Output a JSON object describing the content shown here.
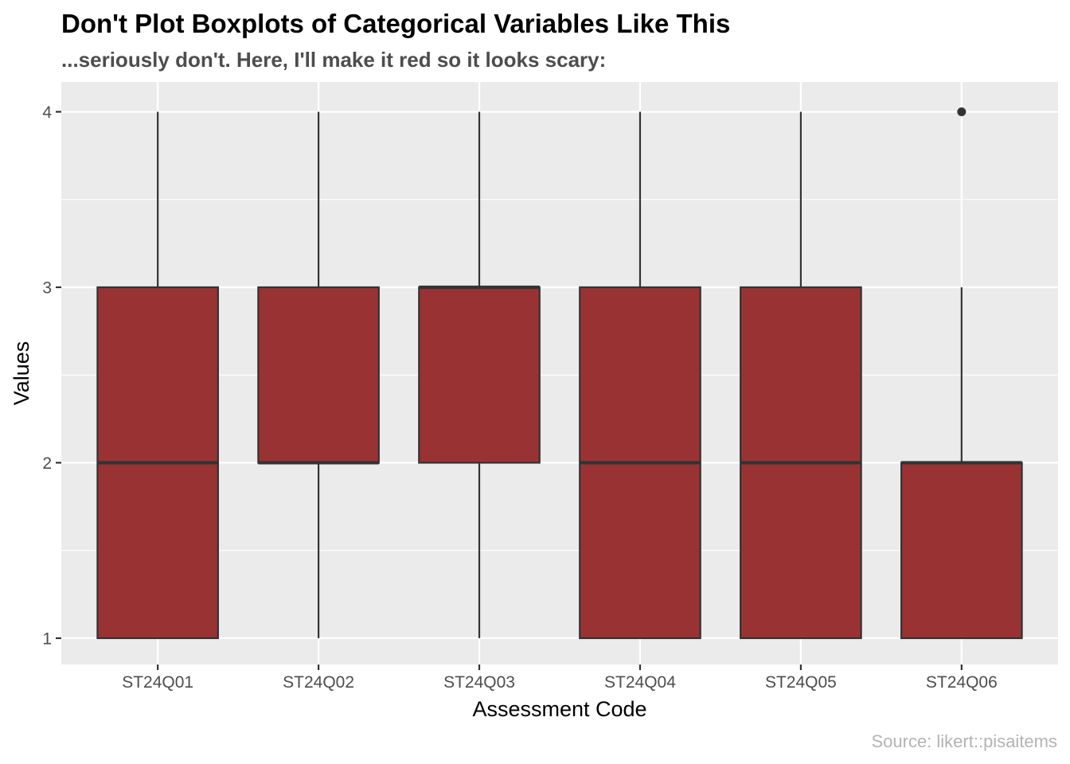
{
  "chart_data": {
    "type": "boxplot",
    "title": "Don't Plot Boxplots of Categorical Variables Like This",
    "subtitle": "...seriously don't. Here, I'll make it red so it looks scary:",
    "caption": "Source: likert::pisaitems",
    "xlabel": "Assessment Code",
    "ylabel": "Values",
    "ylim": [
      0.85,
      4.17
    ],
    "yticks": [
      1,
      2,
      3,
      4
    ],
    "ytick_labels": [
      "1",
      "2",
      "3",
      "4"
    ],
    "grid": true,
    "legend": "none",
    "fill_color": "#993333",
    "line_color": "#333333",
    "panel_background": "#ebebeb",
    "grid_color": "#ffffff",
    "categories": [
      "ST24Q01",
      "ST24Q02",
      "ST24Q03",
      "ST24Q04",
      "ST24Q05",
      "ST24Q06"
    ],
    "boxes": [
      {
        "category": "ST24Q01",
        "whisker_low": 1,
        "q1": 1,
        "median": 2,
        "q3": 3,
        "whisker_high": 4,
        "outliers": []
      },
      {
        "category": "ST24Q02",
        "whisker_low": 1,
        "q1": 2,
        "median": 2,
        "q3": 3,
        "whisker_high": 4,
        "outliers": []
      },
      {
        "category": "ST24Q03",
        "whisker_low": 1,
        "q1": 2,
        "median": 3,
        "q3": 3,
        "whisker_high": 4,
        "outliers": []
      },
      {
        "category": "ST24Q04",
        "whisker_low": 1,
        "q1": 1,
        "median": 2,
        "q3": 3,
        "whisker_high": 4,
        "outliers": []
      },
      {
        "category": "ST24Q05",
        "whisker_low": 1,
        "q1": 1,
        "median": 2,
        "q3": 3,
        "whisker_high": 4,
        "outliers": []
      },
      {
        "category": "ST24Q06",
        "whisker_low": 1,
        "q1": 1,
        "median": 2,
        "q3": 2,
        "whisker_high": 3,
        "outliers": [
          4
        ]
      }
    ]
  }
}
